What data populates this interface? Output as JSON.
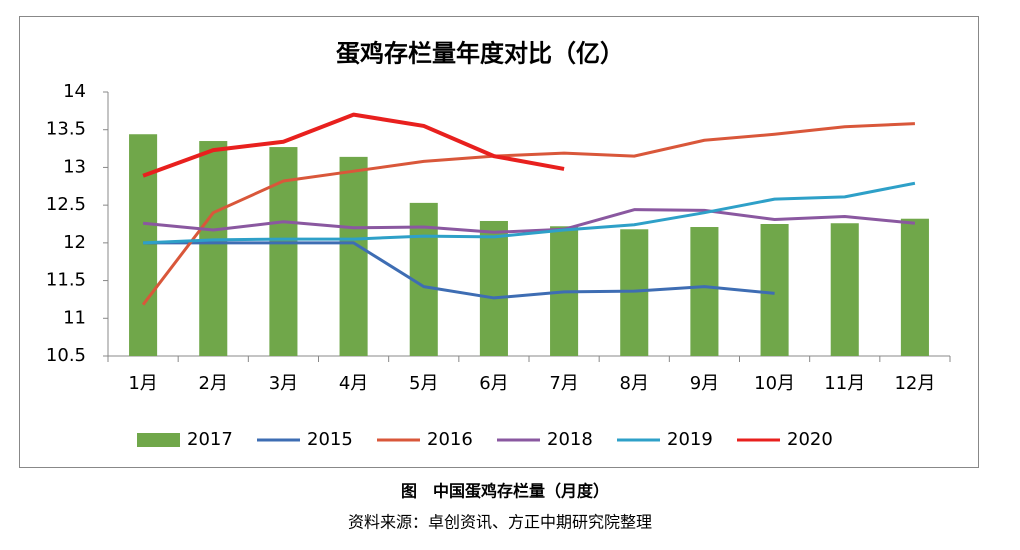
{
  "chart_data": {
    "type": "combo",
    "title": "蛋鸡存栏量年度对比（亿）",
    "categories": [
      "1月",
      "2月",
      "3月",
      "4月",
      "5月",
      "6月",
      "7月",
      "8月",
      "9月",
      "10月",
      "11月",
      "12月"
    ],
    "ylim": [
      10.5,
      14
    ],
    "yticks": [
      10.5,
      11,
      11.5,
      12,
      12.5,
      13,
      13.5,
      14
    ],
    "series": [
      {
        "name": "2017",
        "type": "bar",
        "color": "#70a74a",
        "values": [
          13.44,
          13.35,
          13.27,
          13.14,
          12.53,
          12.29,
          12.22,
          12.18,
          12.21,
          12.25,
          12.26,
          12.32
        ]
      },
      {
        "name": "2015",
        "type": "line",
        "color": "#3e6db3",
        "values": [
          12.0,
          12.0,
          12.0,
          12.0,
          11.42,
          11.27,
          11.35,
          11.36,
          11.42,
          11.33,
          null,
          null
        ]
      },
      {
        "name": "2016",
        "type": "line",
        "color": "#d9573a",
        "values": [
          11.18,
          12.4,
          12.82,
          12.95,
          13.08,
          13.15,
          13.19,
          13.15,
          13.36,
          13.44,
          13.54,
          13.58
        ]
      },
      {
        "name": "2018",
        "type": "line",
        "color": "#8a58a0",
        "values": [
          12.26,
          12.17,
          12.28,
          12.2,
          12.21,
          12.14,
          12.18,
          12.44,
          12.43,
          12.31,
          12.35,
          12.26
        ]
      },
      {
        "name": "2019",
        "type": "line",
        "color": "#2ea0c8",
        "values": [
          12.0,
          12.04,
          12.05,
          12.05,
          12.09,
          12.08,
          12.17,
          12.24,
          12.4,
          12.58,
          12.61,
          12.79
        ]
      },
      {
        "name": "2020",
        "type": "line",
        "color": "#e8201e",
        "values": [
          12.89,
          13.23,
          13.34,
          13.7,
          13.55,
          13.15,
          12.98,
          null,
          null,
          null,
          null,
          null
        ]
      }
    ]
  },
  "caption": "图　中国蛋鸡存栏量（月度）",
  "source": "资料来源：卓创资讯、方正中期研究院整理"
}
